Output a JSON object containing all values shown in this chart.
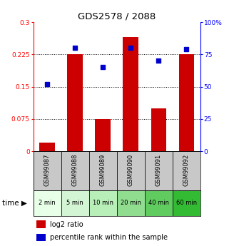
{
  "title": "GDS2578 / 2088",
  "samples": [
    "GSM99087",
    "GSM99088",
    "GSM99089",
    "GSM99090",
    "GSM99091",
    "GSM99092"
  ],
  "time_labels": [
    "2 min",
    "5 min",
    "10 min",
    "20 min",
    "40 min",
    "60 min"
  ],
  "log2_ratio": [
    0.02,
    0.225,
    0.075,
    0.265,
    0.1,
    0.225
  ],
  "percentile_rank": [
    52,
    80,
    65,
    80,
    70,
    79
  ],
  "bar_color": "#cc0000",
  "dot_color": "#0000cc",
  "left_ylim": [
    0,
    0.3
  ],
  "right_ylim": [
    0,
    100
  ],
  "left_yticks": [
    0,
    0.075,
    0.15,
    0.225,
    0.3
  ],
  "right_yticks": [
    0,
    25,
    50,
    75,
    100
  ],
  "left_yticklabels": [
    "0",
    "0.075",
    "0.15",
    "0.225",
    "0.3"
  ],
  "right_yticklabels": [
    "0",
    "25",
    "50",
    "75",
    "100%"
  ],
  "hlines": [
    0.075,
    0.15,
    0.225
  ],
  "time_bg_colors": [
    "#e8ffe8",
    "#d4f5d4",
    "#b8eeb8",
    "#90dd90",
    "#60cc60",
    "#33bb33"
  ],
  "sample_bg_color": "#c8c8c8",
  "bg_color_white": "#ffffff",
  "legend_bar_label": "log2 ratio",
  "legend_dot_label": "percentile rank within the sample"
}
